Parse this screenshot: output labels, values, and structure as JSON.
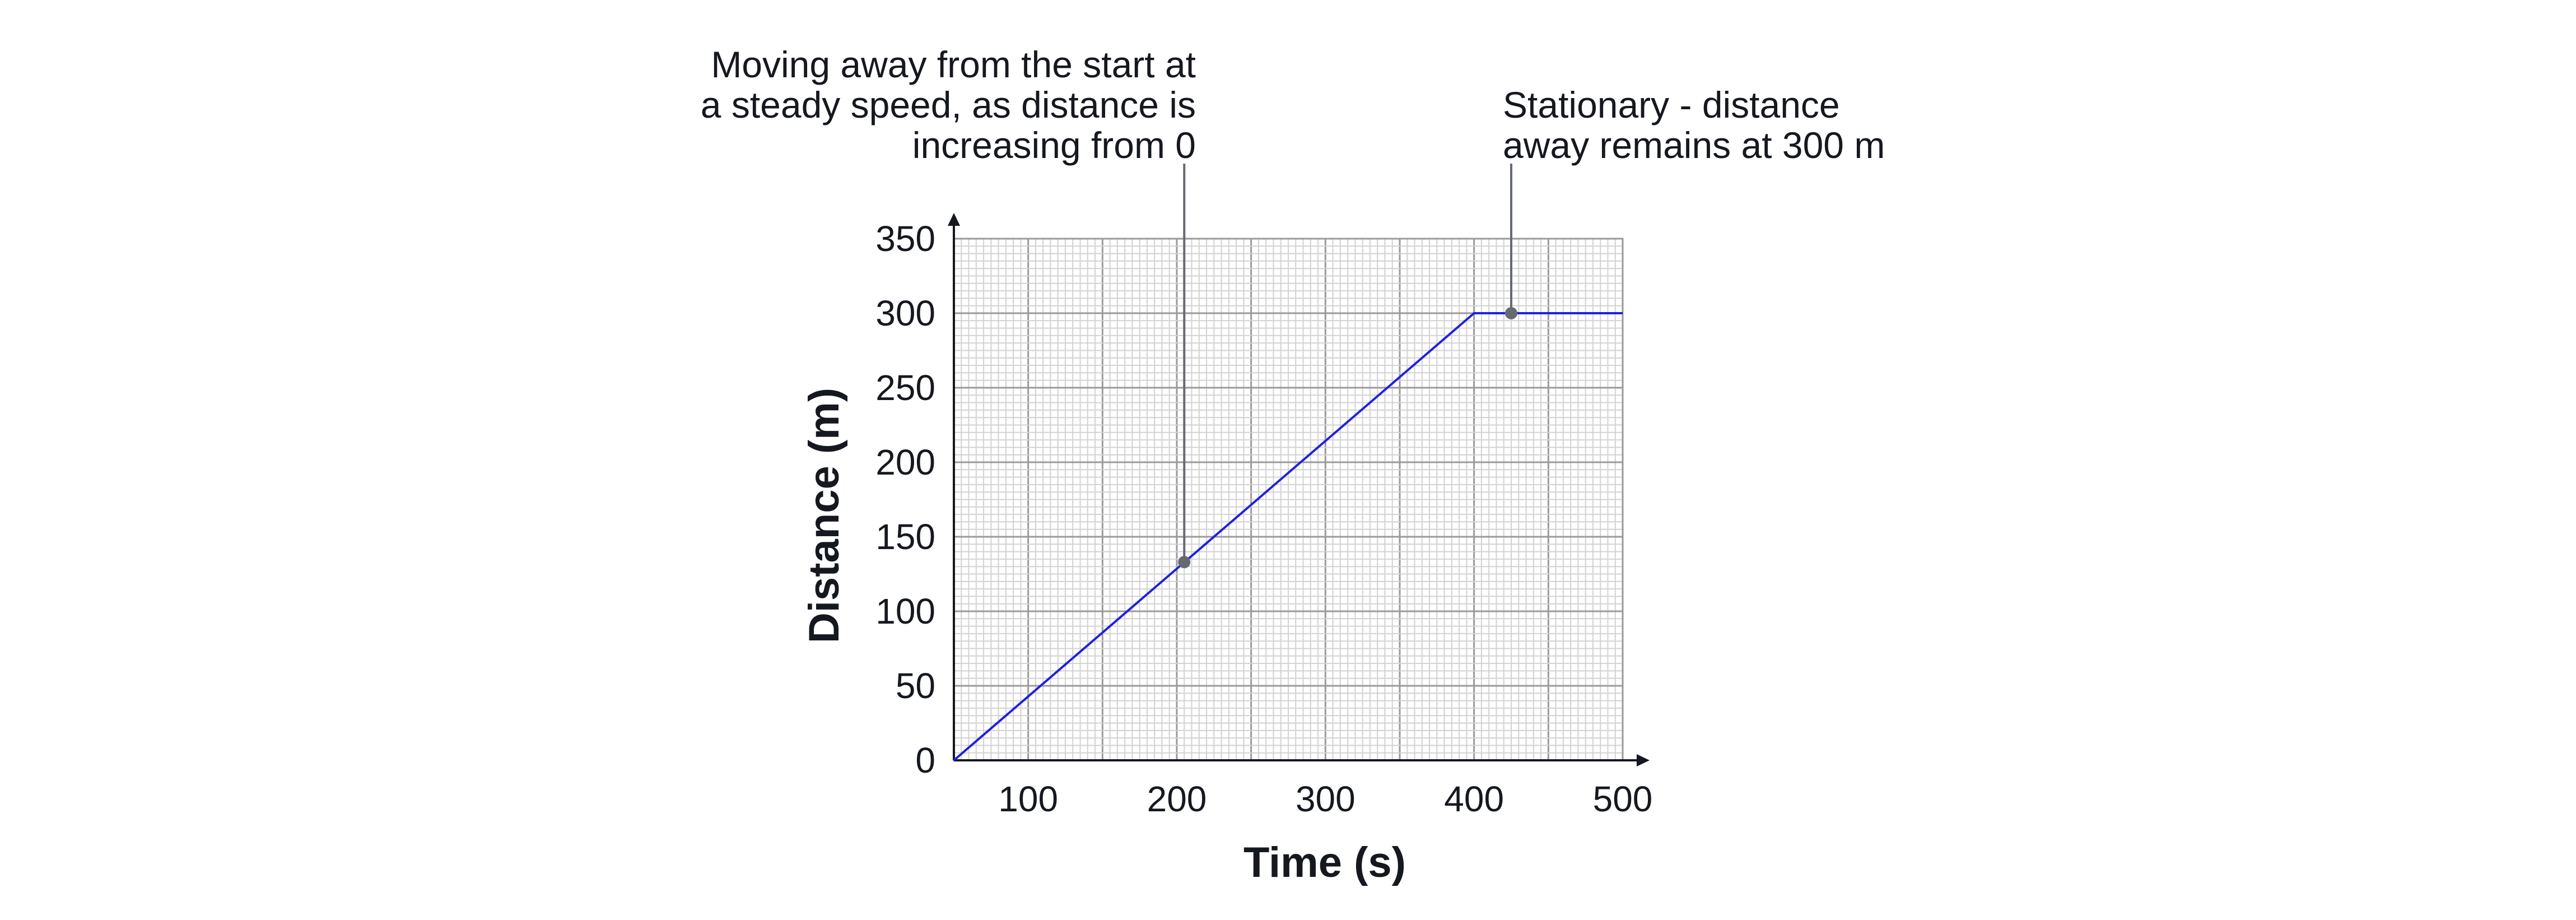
{
  "chart_data": {
    "type": "line",
    "xlabel": "Time (s)",
    "ylabel": "Distance (m)",
    "xlim": [
      50,
      500
    ],
    "ylim": [
      0,
      350
    ],
    "x_ticks": [
      100,
      200,
      300,
      400,
      500
    ],
    "y_ticks": [
      0,
      50,
      100,
      150,
      200,
      250,
      300,
      350
    ],
    "grid": true,
    "series": [
      {
        "color": "#2020e0",
        "x": [
          50,
          400,
          500
        ],
        "y": [
          0,
          300,
          300
        ]
      }
    ],
    "annotations": [
      {
        "lines": [
          "Moving away from the start at",
          "a steady speed, as distance is",
          "increasing from 0"
        ],
        "x": 205,
        "y": 133
      },
      {
        "lines": [
          "Stationary - distance",
          "away remains at 300 m"
        ],
        "x": 425,
        "y": 300
      }
    ]
  }
}
